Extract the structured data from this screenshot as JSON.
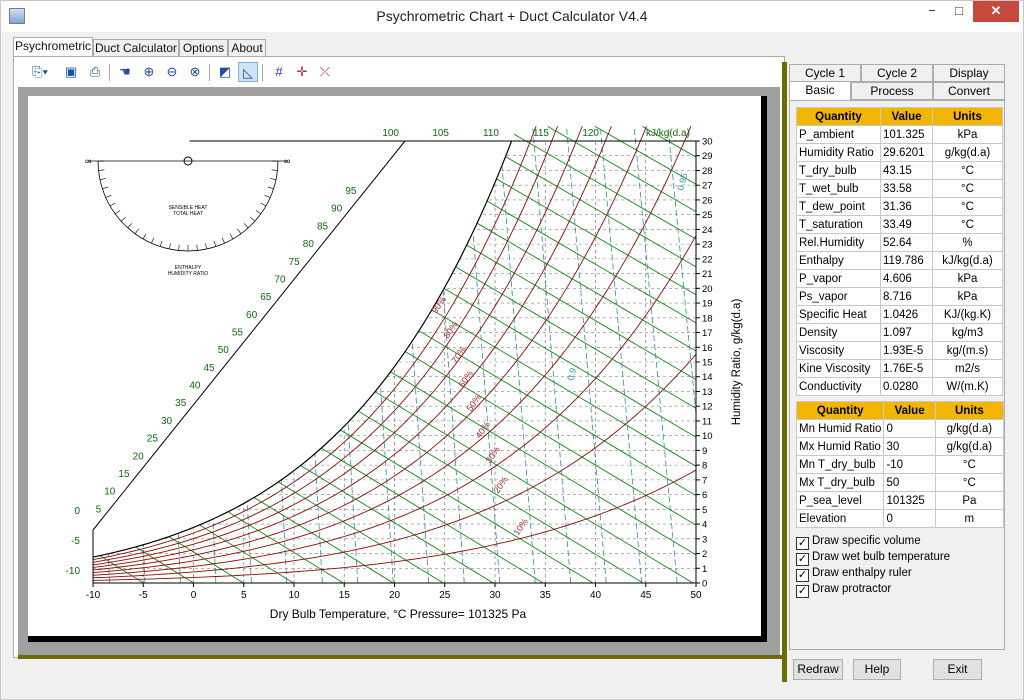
{
  "window": {
    "title": "Psychrometric Chart + Duct Calculator V4.4",
    "min": "−",
    "max": "□",
    "close": "✕"
  },
  "tabs": [
    "Psychrometric",
    "Duct Calculator",
    "Options",
    "About"
  ],
  "right_tabs_row1": [
    "Cycle 1",
    "Cycle 2",
    "Display"
  ],
  "right_tabs_row2": [
    "Basic",
    "Process",
    "Convert"
  ],
  "table1": {
    "headers": [
      "Quantity",
      "Value",
      "Units"
    ],
    "rows": [
      [
        "P_ambient",
        "101.325",
        "kPa"
      ],
      [
        "Humidity Ratio",
        "29.6201",
        "g/kg(d.a)"
      ],
      [
        "T_dry_bulb",
        "43.15",
        "°C"
      ],
      [
        "T_wet_bulb",
        "33.58",
        "°C"
      ],
      [
        "T_dew_point",
        "31.36",
        "°C"
      ],
      [
        "T_saturation",
        "33.49",
        "°C"
      ],
      [
        "Rel.Humidity",
        "52.64",
        "%"
      ],
      [
        "Enthalpy",
        "119.786",
        "kJ/kg(d.a)"
      ],
      [
        "P_vapor",
        "4.606",
        "kPa"
      ],
      [
        "Ps_vapor",
        "8.716",
        "kPa"
      ],
      [
        "Specific Heat",
        "1.0426",
        "KJ/(kg.K)"
      ],
      [
        "Density",
        "1.097",
        "kg/m3"
      ],
      [
        "Viscosity",
        "1.93E-5",
        "kg/(m.s)"
      ],
      [
        "Kine Viscosity",
        "1.76E-5",
        "m2/s"
      ],
      [
        "Conductivity",
        "0.0280",
        "W/(m.K)"
      ]
    ]
  },
  "table2": {
    "headers": [
      "Quantity",
      "Value",
      "Units"
    ],
    "rows": [
      [
        "Mn Humid Ratio",
        "0",
        "g/kg(d.a)"
      ],
      [
        "Mx Humid Ratio",
        "30",
        "g/kg(d.a)"
      ],
      [
        "Mn T_dry_bulb",
        "-10",
        "°C"
      ],
      [
        "Mx T_dry_bulb",
        "50",
        "°C"
      ],
      [
        "P_sea_level",
        "101325",
        "Pa"
      ],
      [
        "Elevation",
        "0",
        "m"
      ]
    ]
  },
  "checkboxes": [
    {
      "label": "Draw specific volume",
      "checked": true
    },
    {
      "label": "Draw wet bulb temperature",
      "checked": true
    },
    {
      "label": "Draw enthalpy ruler",
      "checked": true
    },
    {
      "label": "Draw protractor",
      "checked": true
    }
  ],
  "buttons": {
    "redraw": "Redraw",
    "help": "Help",
    "exit": "Exit"
  },
  "chart_data": {
    "type": "line",
    "title": "",
    "xlabel": "Dry Bulb Temperature, °C   Pressure= 101325 Pa",
    "ylabel": "Humidity Ratio, g/kg(d.a)",
    "xlim": [
      -10,
      50
    ],
    "ylim": [
      0,
      30
    ],
    "x_ticks": [
      "-10",
      "-5",
      "0",
      "5",
      "10",
      "15",
      "20",
      "25",
      "30",
      "35",
      "40",
      "45",
      "50"
    ],
    "y_ticks": [
      "0",
      "1",
      "2",
      "3",
      "4",
      "5",
      "6",
      "7",
      "8",
      "9",
      "10",
      "11",
      "12",
      "13",
      "14",
      "15",
      "16",
      "17",
      "18",
      "19",
      "20",
      "21",
      "22",
      "23",
      "24",
      "25",
      "26",
      "27",
      "28",
      "29",
      "30"
    ],
    "enthalpy_ticks": [
      "-10",
      "-5",
      "0",
      "5",
      "10",
      "15",
      "20",
      "25",
      "30",
      "35",
      "40",
      "45",
      "50",
      "55",
      "60",
      "65",
      "70",
      "75",
      "80",
      "85",
      "90",
      "95",
      "100",
      "105",
      "110",
      "115",
      "120"
    ],
    "enthalpy_units": "kJ/kg(d.a)",
    "rh_labels": [
      "90%",
      "80%",
      "70%",
      "60%",
      "50%",
      "40%",
      "30%",
      "20%",
      "10%"
    ],
    "sv_labels": [
      "0.95",
      "0.9"
    ],
    "protractor": {
      "top_left": "∞",
      "top_right": "∞",
      "labels": [
        "SENSIBLE HEAT",
        "TOTAL HEAT",
        "ENTHALPY",
        "HUMIDITY RATIO"
      ]
    }
  }
}
